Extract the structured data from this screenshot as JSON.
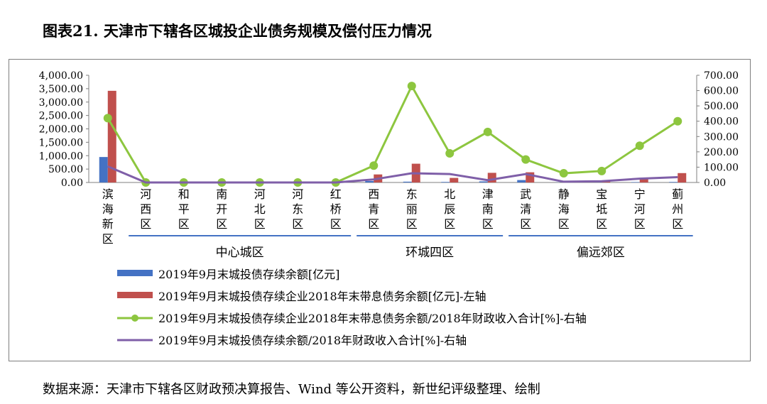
{
  "title": "图表21. 天津市下辖各区城投企业债务规模及偿付压力情况",
  "source": "数据来源：天津市下辖各区财政预决算报告、Wind 等公开资料，新世纪评级整理、绘制",
  "chart_data": {
    "type": "bar",
    "categories": [
      "滨海新区",
      "河西区",
      "和平区",
      "南开区",
      "河北区",
      "河东区",
      "红桥区",
      "西青区",
      "东丽区",
      "北辰区",
      "津南区",
      "武清区",
      "静海区",
      "宝坻区",
      "宁河区",
      "蓟州区"
    ],
    "category_groups": [
      {
        "label": "中心城区",
        "from": 1,
        "to": 6
      },
      {
        "label": "环城四区",
        "from": 7,
        "to": 10
      },
      {
        "label": "偏远郊区",
        "from": 11,
        "to": 15
      }
    ],
    "y_left": {
      "ticks": [
        "0.00",
        "500.00",
        "1,000.00",
        "1,500.00",
        "2,000.00",
        "2,500.00",
        "3,000.00",
        "3,500.00",
        "4,000.00"
      ],
      "ylim": [
        0,
        4000
      ]
    },
    "y_right": {
      "ticks": [
        "0.00",
        "100.00",
        "200.00",
        "300.00",
        "400.00",
        "500.00",
        "600.00",
        "700.00"
      ],
      "ylim": [
        0,
        700
      ]
    },
    "series": [
      {
        "name": "2019年9月末城投债存续余额[亿元]",
        "type": "bar",
        "axis": "left",
        "color": "#4472c4",
        "values": [
          950,
          0,
          0,
          0,
          0,
          0,
          0,
          55,
          30,
          20,
          40,
          90,
          5,
          5,
          15,
          20
        ]
      },
      {
        "name": "2019年9月末城投债存续企业2018年末带息债务余额[亿元]-左轴",
        "type": "bar",
        "axis": "left",
        "color": "#c0504d",
        "values": [
          3420,
          0,
          0,
          0,
          0,
          0,
          0,
          300,
          700,
          170,
          360,
          380,
          60,
          60,
          150,
          350
        ]
      },
      {
        "name": "2019年9月末城投债存续企业2018年末带息债务余额/2018年财政收入合计[%]-右轴",
        "type": "line",
        "axis": "right",
        "color": "#8dc63f",
        "values": [
          420,
          0,
          0,
          0,
          0,
          0,
          0,
          110,
          630,
          190,
          330,
          150,
          60,
          75,
          240,
          400
        ]
      },
      {
        "name": "2019年9月末城投债存续余额/2018年财政收入合计[%]-右轴",
        "type": "line",
        "axis": "right",
        "color": "#7f5fa8",
        "values": [
          105,
          0,
          0,
          0,
          0,
          0,
          0,
          20,
          60,
          55,
          15,
          55,
          5,
          8,
          25,
          35
        ]
      }
    ],
    "legend_position": "bottom",
    "grid": false
  }
}
